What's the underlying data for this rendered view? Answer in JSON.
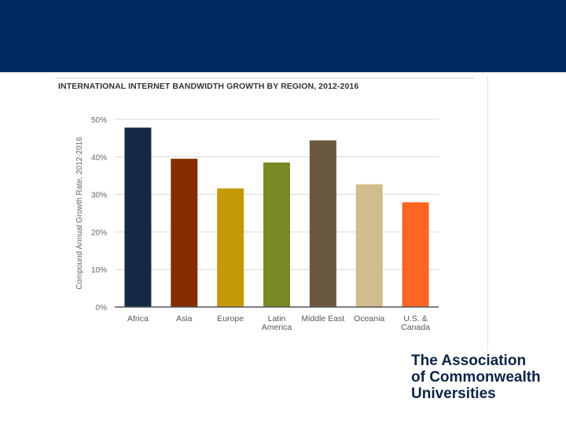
{
  "chart_data": {
    "type": "bar",
    "title": "INTERNATIONAL INTERNET BANDWIDTH GROWTH BY REGION, 2012-2016",
    "xlabel": "",
    "ylabel": "Compound Annual Growth Rate, 2012-2016",
    "ylim": [
      0,
      50
    ],
    "yticks": [
      0,
      10,
      20,
      30,
      40,
      50
    ],
    "ytick_labels": [
      "0%",
      "10%",
      "20%",
      "30%",
      "40%",
      "50%"
    ],
    "grid": true,
    "categories": [
      [
        "Africa"
      ],
      [
        "Asia"
      ],
      [
        "Europe"
      ],
      [
        "Latin",
        "America"
      ],
      [
        "Middle East"
      ],
      [
        "Oceania"
      ],
      [
        "U.S. &",
        "Canada"
      ]
    ],
    "values": [
      47.8,
      39.5,
      31.6,
      38.5,
      44.4,
      32.7,
      27.9
    ],
    "colors": [
      "#142a44",
      "#852d00",
      "#c39a06",
      "#788a24",
      "#6b5841",
      "#d0bc8c",
      "#fb6623"
    ]
  },
  "header": {
    "color": "#002960"
  },
  "logo": {
    "lines": [
      "The Association",
      "of Commonwealth",
      "Universities"
    ],
    "color": "#0e2345"
  }
}
